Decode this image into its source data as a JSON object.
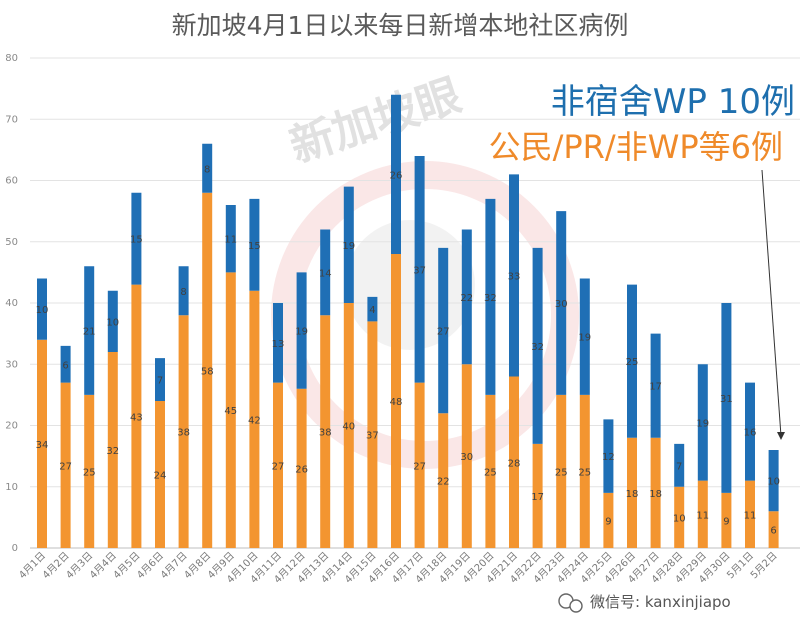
{
  "chart_data": {
    "type": "bar",
    "stacked": true,
    "title": "新加坡4月1日以来每日新增本地社区病例",
    "ylim": [
      0,
      80
    ],
    "yticks": [
      0,
      10,
      20,
      30,
      40,
      50,
      60,
      70,
      80
    ],
    "grid": true,
    "categories": [
      "4月1日",
      "4月2日",
      "4月3日",
      "4月4日",
      "4月5日",
      "4月6日",
      "4月7日",
      "4月8日",
      "4月9日",
      "4月10日",
      "4月11日",
      "4月12日",
      "4月13日",
      "4月14日",
      "4月15日",
      "4月16日",
      "4月17日",
      "4月18日",
      "4月19日",
      "4月20日",
      "4月21日",
      "4月22日",
      "4月23日",
      "4月24日",
      "4月25日",
      "4月26日",
      "4月27日",
      "4月28日",
      "4月29日",
      "4月30日",
      "5月1日",
      "5月2日"
    ],
    "series": [
      {
        "name": "公民/PR/非WP",
        "color": "#f39530",
        "values": [
          34,
          27,
          25,
          32,
          43,
          24,
          38,
          58,
          45,
          42,
          27,
          26,
          38,
          40,
          37,
          48,
          27,
          22,
          30,
          25,
          28,
          17,
          25,
          25,
          9,
          18,
          18,
          10,
          11,
          9,
          11,
          6
        ]
      },
      {
        "name": "非宿舍WP",
        "color": "#1f6fb5",
        "values": [
          10,
          6,
          21,
          10,
          15,
          7,
          8,
          8,
          11,
          15,
          13,
          19,
          14,
          19,
          4,
          26,
          37,
          27,
          22,
          32,
          33,
          32,
          30,
          19,
          12,
          25,
          17,
          7,
          19,
          31,
          16,
          10
        ]
      }
    ],
    "annotations": [
      {
        "text": "非宿舍WP 10例",
        "color": "#1f6fb5"
      },
      {
        "text": "公民/PR/非WP等6例",
        "color": "#f39530"
      }
    ]
  },
  "watermark": "新加坡眼",
  "wechat_label": "微信号: kanxinjiapo"
}
